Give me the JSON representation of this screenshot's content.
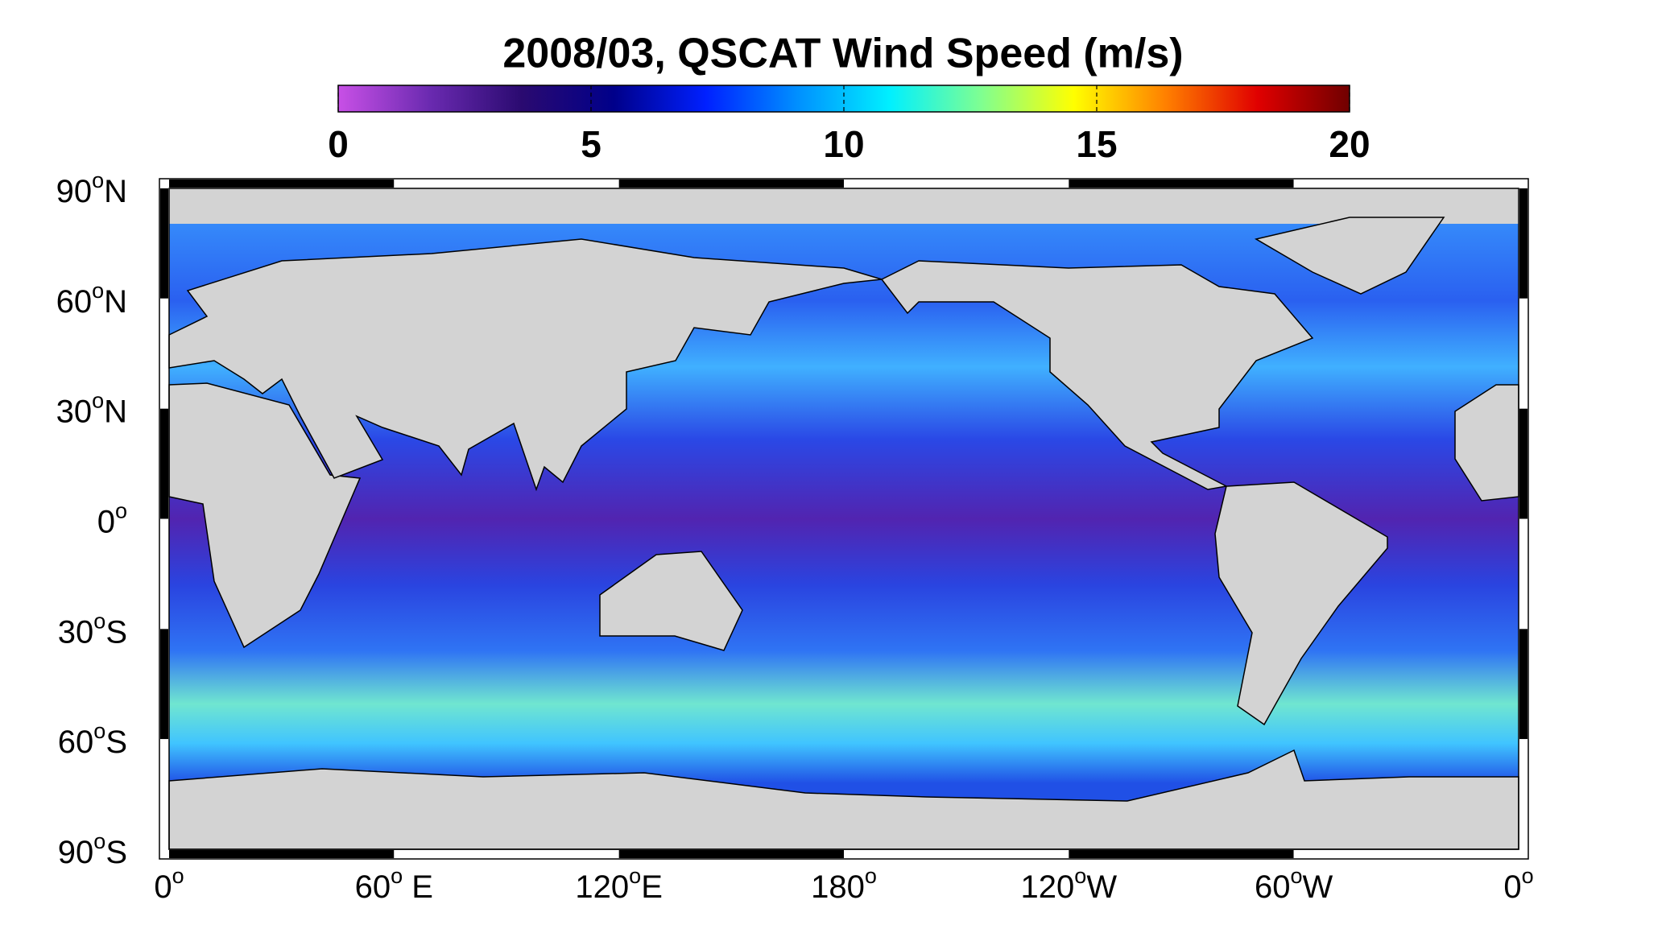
{
  "map": {
    "title": "2008/03,  QSCAT Wind Speed (m/s)",
    "colorbar": {
      "lim": [
        0,
        20
      ],
      "ticks": [
        0,
        5,
        10,
        15,
        20
      ],
      "colors": [
        "#c850e6",
        "#6a2ab0",
        "#2a0a70",
        "#00008a",
        "#0020ff",
        "#0090ff",
        "#00f0ff",
        "#80ff90",
        "#ffff00",
        "#ff8000",
        "#e00000",
        "#700000"
      ]
    },
    "latitude_ticks": [
      {
        "value": 90,
        "label": [
          "90",
          "o",
          "N"
        ]
      },
      {
        "value": 60,
        "label": [
          "60",
          "o",
          "N"
        ]
      },
      {
        "value": 30,
        "label": [
          "30",
          "o",
          "N"
        ]
      },
      {
        "value": 0,
        "label": [
          "0",
          "o"
        ]
      },
      {
        "value": -30,
        "label": [
          "30",
          "o",
          "S"
        ]
      },
      {
        "value": -60,
        "label": [
          "60",
          "o",
          "S"
        ]
      },
      {
        "value": -90,
        "label": [
          "90",
          "o",
          "S"
        ]
      }
    ],
    "longitude_ticks": [
      {
        "value": 0,
        "label": [
          "0",
          "o"
        ]
      },
      {
        "value": 60,
        "label": [
          "60",
          "o",
          " E"
        ]
      },
      {
        "value": 120,
        "label": [
          "120",
          "o",
          "E"
        ]
      },
      {
        "value": 180,
        "label": [
          "180",
          "o"
        ]
      },
      {
        "value": 240,
        "label": [
          "120",
          "o",
          "W"
        ]
      },
      {
        "value": 300,
        "label": [
          "60",
          "o",
          "W"
        ]
      },
      {
        "value": 360,
        "label": [
          "0",
          "o"
        ]
      }
    ]
  }
}
